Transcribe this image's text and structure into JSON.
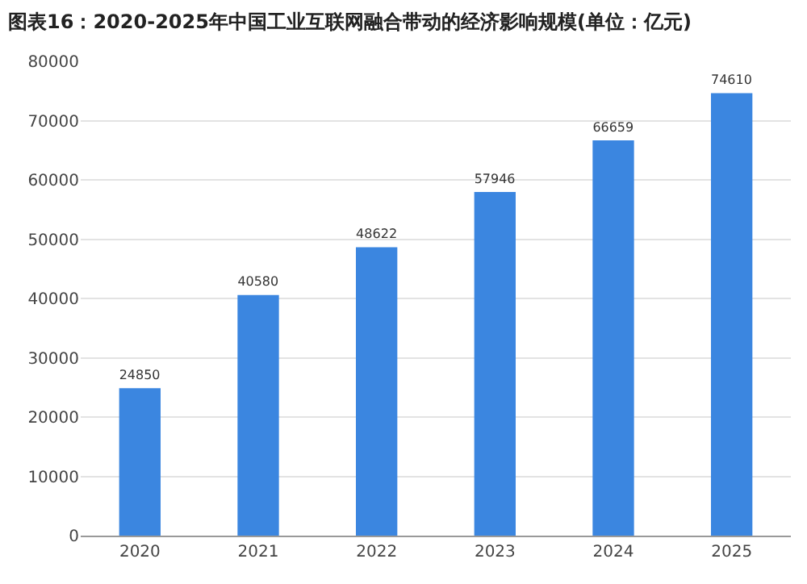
{
  "chart_data": {
    "type": "bar",
    "title": "图表16：2020-2025年中国工业互联网融合带动的经济影响规模(单位：亿元)",
    "categories": [
      "2020",
      "2021",
      "2022",
      "2023",
      "2024",
      "2025"
    ],
    "values": [
      24850,
      40580,
      48622,
      57946,
      66659,
      74610
    ],
    "color": "#3b86e0",
    "ylim": [
      0,
      80000
    ],
    "yticks": [
      0,
      10000,
      20000,
      30000,
      40000,
      50000,
      60000,
      70000,
      80000
    ],
    "grid": "y",
    "data_labels": true
  }
}
